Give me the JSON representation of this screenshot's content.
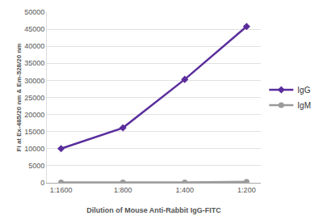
{
  "chart_data": {
    "type": "line",
    "x_label": "Dilution of Mouse Anti-Rabbit IgG-FITC",
    "y_label": "FI at Ex-485/20 nm & Em-528/20 nm",
    "categories": [
      "1:1600",
      "1:800",
      "1:400",
      "1:200"
    ],
    "series": [
      {
        "name": "IgG",
        "color": "#5a2d9c",
        "marker": "diamond",
        "values": [
          10000,
          16100,
          30300,
          45800
        ]
      },
      {
        "name": "IgM",
        "color": "#9a9a9a",
        "marker": "circle",
        "values": [
          100,
          100,
          100,
          300
        ]
      }
    ],
    "ylim": [
      0,
      50000
    ],
    "yticks": [
      0,
      5000,
      10000,
      15000,
      20000,
      25000,
      30000,
      35000,
      40000,
      45000,
      50000
    ],
    "grid": true,
    "legend": "right"
  }
}
